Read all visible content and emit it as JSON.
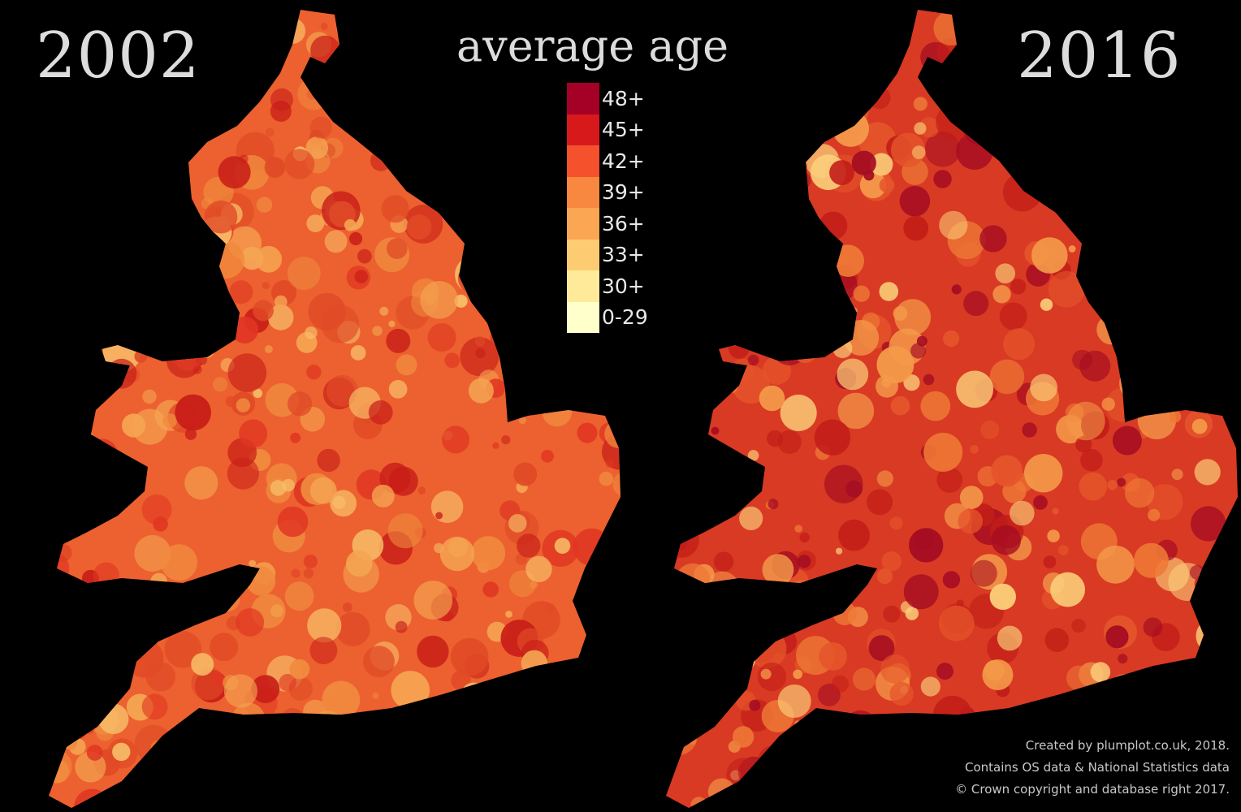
{
  "title": "average age",
  "maps": [
    {
      "year": "2002",
      "base_color": "#ec612f",
      "palette": [
        "#e04a26",
        "#f08a3e",
        "#f5a552",
        "#e03622",
        "#f8c06a",
        "#c81e18"
      ]
    },
    {
      "year": "2016",
      "base_color": "#d93a23",
      "palette": [
        "#c21d18",
        "#e5552b",
        "#a50d22",
        "#ee7836",
        "#f49a4a",
        "#fbcf7a"
      ]
    }
  ],
  "legend": {
    "bins": [
      {
        "label": "48+",
        "color": "#a50026"
      },
      {
        "label": "45+",
        "color": "#d7191c"
      },
      {
        "label": "42+",
        "color": "#f4512c"
      },
      {
        "label": "39+",
        "color": "#f8883f"
      },
      {
        "label": "36+",
        "color": "#fba652"
      },
      {
        "label": "33+",
        "color": "#fdcb72"
      },
      {
        "label": "30+",
        "color": "#feea99"
      },
      {
        "label": "0-29",
        "color": "#ffffcc"
      }
    ]
  },
  "credits": [
    "Created by plumplot.co.uk, 2018.",
    "Contains OS data & National Statistics data",
    "© Crown copyright and database right 2017."
  ]
}
